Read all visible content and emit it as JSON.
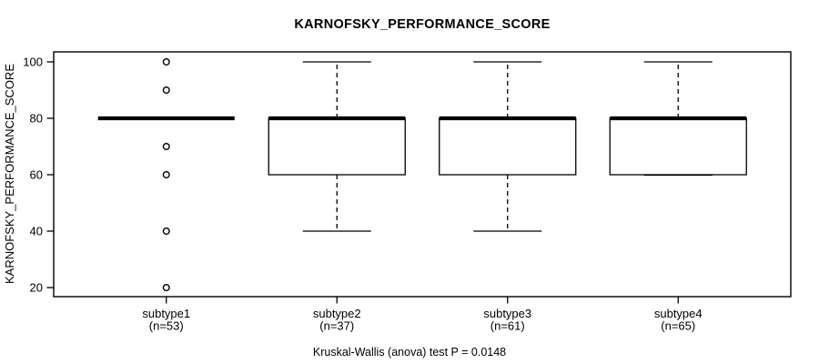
{
  "chart_data": {
    "type": "boxplot",
    "title": "KARNOFSKY_PERFORMANCE_SCORE",
    "ylabel": "KARNOFSKY_PERFORMANCE_SCORE",
    "xlabel": "",
    "caption": "Kruskal-Wallis (anova) test P = 0.0148",
    "yticks": [
      20,
      40,
      60,
      80,
      100
    ],
    "ylim": [
      14,
      106
    ],
    "grid": false,
    "legend": null,
    "colors": {
      "line": "#000000",
      "background": "#ffffff",
      "box_fill": "#ffffff"
    },
    "groups": [
      {
        "label": "subtype1",
        "sublabel": "(n=53)",
        "n": 53,
        "median": 80,
        "q1": 80,
        "q3": 80,
        "whisker_low": null,
        "whisker_high": null,
        "outliers": [
          100,
          90,
          70,
          60,
          40,
          20
        ]
      },
      {
        "label": "subtype2",
        "sublabel": "(n=37)",
        "n": 37,
        "median": 80,
        "q1": 60,
        "q3": 80,
        "whisker_low": 40,
        "whisker_high": 100,
        "outliers": []
      },
      {
        "label": "subtype3",
        "sublabel": "(n=61)",
        "n": 61,
        "median": 80,
        "q1": 60,
        "q3": 80,
        "whisker_low": 40,
        "whisker_high": 100,
        "outliers": []
      },
      {
        "label": "subtype4",
        "sublabel": "(n=65)",
        "n": 65,
        "median": 80,
        "q1": 60,
        "q3": 80,
        "whisker_low": 60,
        "whisker_high": 100,
        "outliers": []
      }
    ]
  }
}
